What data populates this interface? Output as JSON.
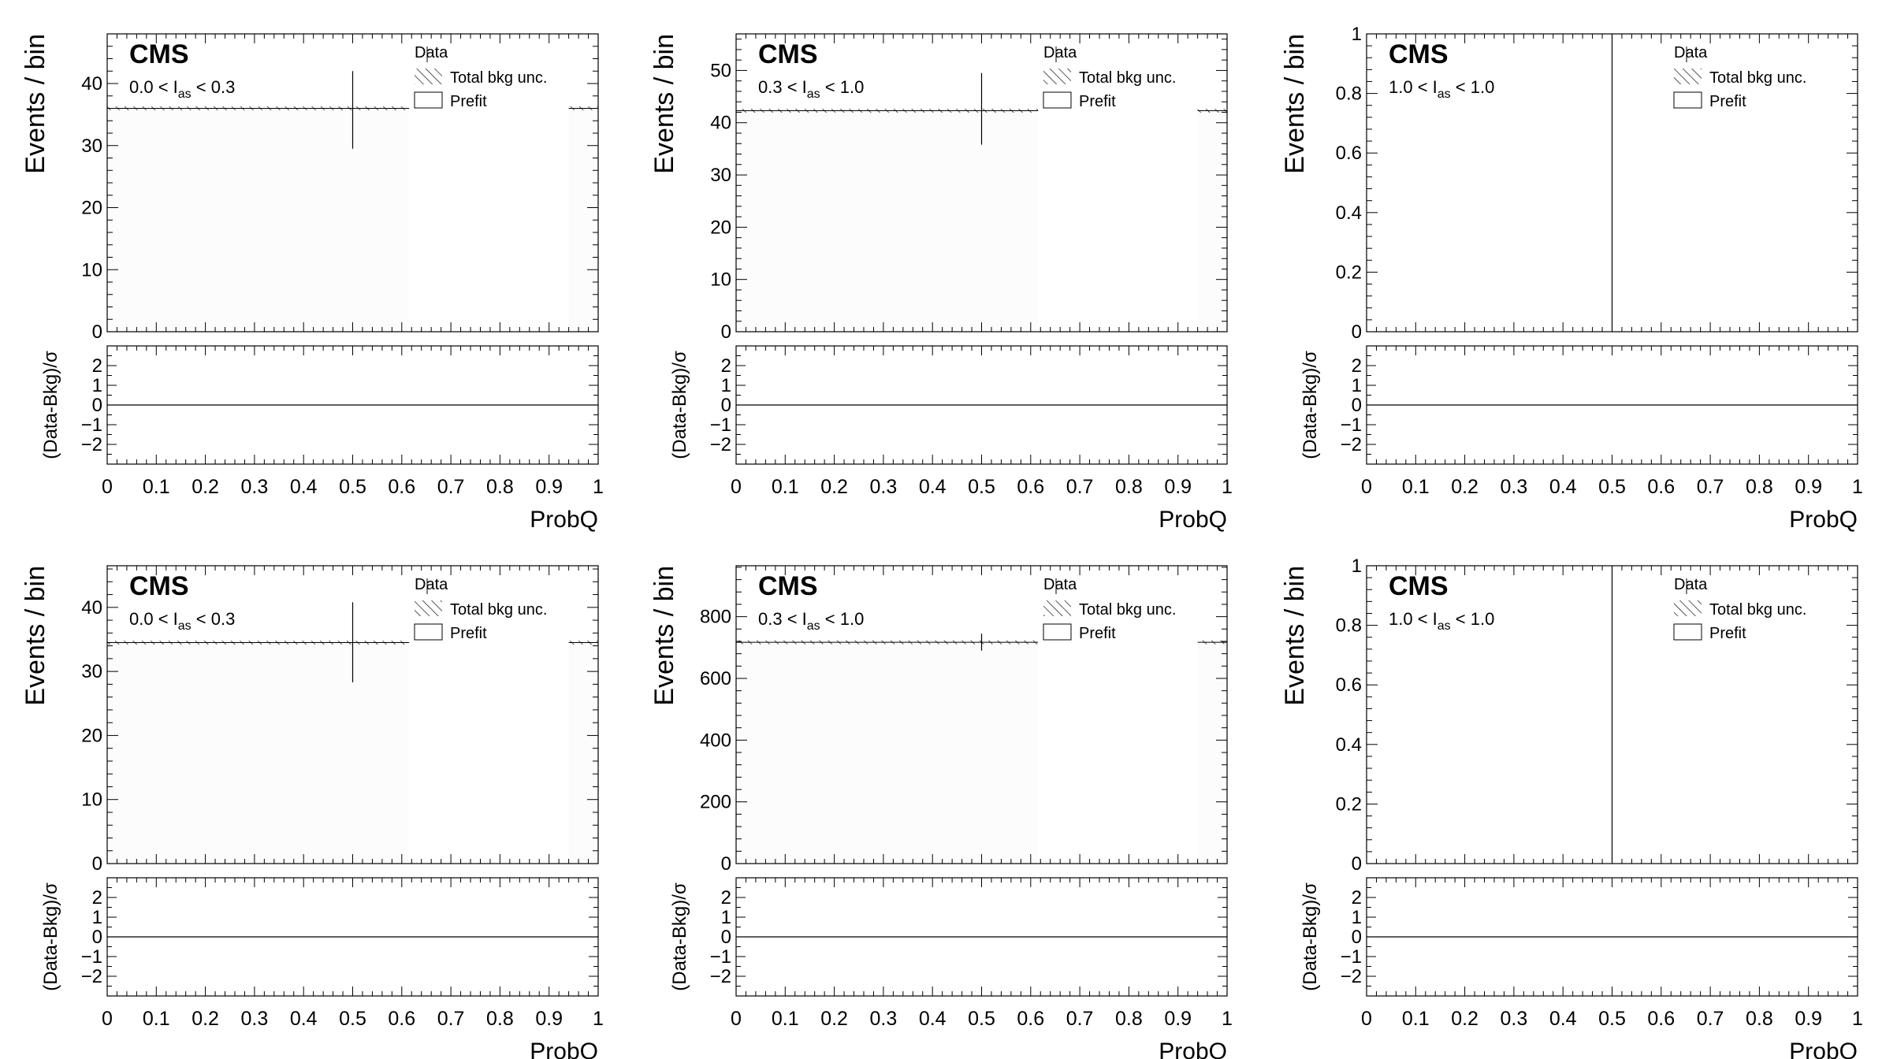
{
  "chart_data": [
    {
      "type": "histogram",
      "experiment": "CMS",
      "region": {
        "lo": "0.0",
        "hi": "0.3"
      },
      "xlabel": "ProbQ",
      "ylabel": "Events / bin",
      "ratio_ylabel": "(Data-Bkg)/σ",
      "legend": {
        "data": "Data",
        "unc": "Total bkg unc.",
        "prefit": "Prefit"
      },
      "xlim": [
        0,
        1
      ],
      "ylim": [
        0,
        48
      ],
      "yticks": [
        0,
        10,
        20,
        30,
        40
      ],
      "xticks": [
        0,
        0.1,
        0.2,
        0.3,
        0.4,
        0.5,
        0.6,
        0.7,
        0.8,
        0.9,
        1
      ],
      "bkg": {
        "bins": [
          [
            0,
            0.615
          ],
          [
            0.94,
            1
          ]
        ],
        "value": 36
      },
      "data": {
        "x": 0.5,
        "y": 36,
        "err_lo": 29.5,
        "err_hi": 42
      },
      "ratio": {
        "ylim": [
          -3,
          3
        ],
        "yticks": [
          -2,
          -1,
          0,
          1,
          2
        ],
        "value": 0
      }
    },
    {
      "type": "histogram",
      "experiment": "CMS",
      "region": {
        "lo": "0.3",
        "hi": "1.0"
      },
      "xlabel": "ProbQ",
      "ylabel": "Events / bin",
      "ratio_ylabel": "(Data-Bkg)/σ",
      "legend": {
        "data": "Data",
        "unc": "Total bkg unc.",
        "prefit": "Prefit"
      },
      "xlim": [
        0,
        1
      ],
      "ylim": [
        0,
        57
      ],
      "yticks": [
        0,
        10,
        20,
        30,
        40,
        50
      ],
      "xticks": [
        0,
        0.1,
        0.2,
        0.3,
        0.4,
        0.5,
        0.6,
        0.7,
        0.8,
        0.9,
        1
      ],
      "bkg": {
        "bins": [
          [
            0,
            0.615
          ],
          [
            0.94,
            1
          ]
        ],
        "value": 42.3
      },
      "data": {
        "x": 0.5,
        "y": 42.3,
        "err_lo": 35.8,
        "err_hi": 49.5
      },
      "ratio": {
        "ylim": [
          -3,
          3
        ],
        "yticks": [
          -2,
          -1,
          0,
          1,
          2
        ],
        "value": 0
      }
    },
    {
      "type": "histogram",
      "experiment": "CMS",
      "region": {
        "lo": "1.0",
        "hi": "1.0"
      },
      "xlabel": "ProbQ",
      "ylabel": "Events / bin",
      "ratio_ylabel": "(Data-Bkg)/σ",
      "legend": {
        "data": "Data",
        "unc": "Total bkg unc.",
        "prefit": "Prefit"
      },
      "xlim": [
        0,
        1
      ],
      "ylim": [
        0,
        1
      ],
      "yticks": [
        0,
        0.2,
        0.4,
        0.6,
        0.8,
        1
      ],
      "xticks": [
        0,
        0.1,
        0.2,
        0.3,
        0.4,
        0.5,
        0.6,
        0.7,
        0.8,
        0.9,
        1
      ],
      "bkg": null,
      "data": {
        "x": 0.5,
        "y": 0,
        "err_lo": 0,
        "err_hi": 1
      },
      "ratio": {
        "ylim": [
          -3,
          3
        ],
        "yticks": [
          -2,
          -1,
          0,
          1,
          2
        ],
        "value": 0
      }
    },
    {
      "type": "histogram",
      "experiment": "CMS",
      "region": {
        "lo": "0.0",
        "hi": "0.3"
      },
      "xlabel": "ProbQ",
      "ylabel": "Events / bin",
      "ratio_ylabel": "(Data-Bkg)/σ",
      "legend": {
        "data": "Data",
        "unc": "Total bkg unc.",
        "prefit": "Prefit"
      },
      "xlim": [
        0,
        1
      ],
      "ylim": [
        0,
        46.5
      ],
      "yticks": [
        0,
        10,
        20,
        30,
        40
      ],
      "xticks": [
        0,
        0.1,
        0.2,
        0.3,
        0.4,
        0.5,
        0.6,
        0.7,
        0.8,
        0.9,
        1
      ],
      "bkg": {
        "bins": [
          [
            0,
            0.615
          ],
          [
            0.94,
            1
          ]
        ],
        "value": 34.5
      },
      "data": {
        "x": 0.5,
        "y": 34.5,
        "err_lo": 28.3,
        "err_hi": 40.8
      },
      "ratio": {
        "ylim": [
          -3,
          3
        ],
        "yticks": [
          -2,
          -1,
          0,
          1,
          2
        ],
        "value": 0
      }
    },
    {
      "type": "histogram",
      "experiment": "CMS",
      "region": {
        "lo": "0.3",
        "hi": "1.0"
      },
      "xlabel": "ProbQ",
      "ylabel": "Events / bin",
      "ratio_ylabel": "(Data-Bkg)/σ",
      "legend": {
        "data": "Data",
        "unc": "Total bkg unc.",
        "prefit": "Prefit"
      },
      "xlim": [
        0,
        1
      ],
      "ylim": [
        0,
        965
      ],
      "yticks": [
        0,
        200,
        400,
        600,
        800
      ],
      "xticks": [
        0,
        0.1,
        0.2,
        0.3,
        0.4,
        0.5,
        0.6,
        0.7,
        0.8,
        0.9,
        1
      ],
      "bkg": {
        "bins": [
          [
            0,
            0.615
          ],
          [
            0.94,
            1
          ]
        ],
        "value": 717
      },
      "data": {
        "x": 0.5,
        "y": 717,
        "err_lo": 690,
        "err_hi": 745
      },
      "ratio": {
        "ylim": [
          -3,
          3
        ],
        "yticks": [
          -2,
          -1,
          0,
          1,
          2
        ],
        "value": 0
      }
    },
    {
      "type": "histogram",
      "experiment": "CMS",
      "region": {
        "lo": "1.0",
        "hi": "1.0"
      },
      "xlabel": "ProbQ",
      "ylabel": "Events / bin",
      "ratio_ylabel": "(Data-Bkg)/σ",
      "legend": {
        "data": "Data",
        "unc": "Total bkg unc.",
        "prefit": "Prefit"
      },
      "xlim": [
        0,
        1
      ],
      "ylim": [
        0,
        1
      ],
      "yticks": [
        0,
        0.2,
        0.4,
        0.6,
        0.8,
        1
      ],
      "xticks": [
        0,
        0.1,
        0.2,
        0.3,
        0.4,
        0.5,
        0.6,
        0.7,
        0.8,
        0.9,
        1
      ],
      "bkg": null,
      "data": {
        "x": 0.5,
        "y": 0,
        "err_lo": 0,
        "err_hi": 1
      },
      "ratio": {
        "ylim": [
          -3,
          3
        ],
        "yticks": [
          -2,
          -1,
          0,
          1,
          2
        ],
        "value": 0
      }
    }
  ]
}
